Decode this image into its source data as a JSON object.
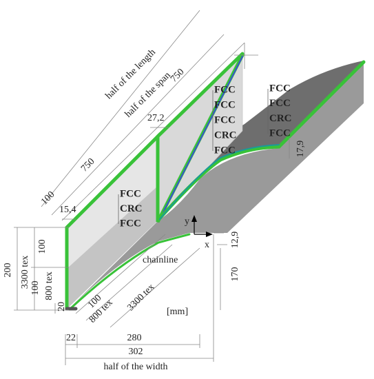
{
  "dimensions": {
    "half_length": "half of the length",
    "half_span": "half of the span",
    "span_top": "750",
    "span_mid": "750",
    "edge_100": "100",
    "d_27_2": "27,2",
    "d_15_4": "15,4",
    "d_17_9": "17,9",
    "d_12_9": "12,9",
    "d_170": "170",
    "d_200": "200",
    "tex_3300_left": "3300 tex",
    "d_100_upper": "100",
    "d_100_lower": "100",
    "tex_800_left": "800 tex",
    "d_20": "20",
    "d_100_bottom": "100",
    "tex_800_bottom": "800 tex",
    "tex_3300_bottom": "3300 tex",
    "d_22": "22",
    "d_280": "280",
    "d_302": "302",
    "half_width": "half of the width"
  },
  "chainline": "chainline",
  "unit": "[mm]",
  "axes": {
    "x": "x",
    "y": "y"
  },
  "layer_groups": [
    [
      {
        "text": "FCC",
        "color": "#1e8a1e"
      },
      {
        "text": "CRC",
        "color": "#111111"
      },
      {
        "text": "FCC",
        "color": "#39c239"
      }
    ],
    [
      {
        "text": "FCC",
        "color": "#8a2be2"
      },
      {
        "text": "FCC",
        "color": "#1a9a9a"
      },
      {
        "text": "FCC",
        "color": "#1e8a1e"
      },
      {
        "text": "CRC",
        "color": "#111111"
      },
      {
        "text": "FCC",
        "color": "#39c239"
      }
    ],
    [
      {
        "text": "FCC",
        "color": "#1a9a9a"
      },
      {
        "text": "FCC",
        "color": "#1e8a1e"
      },
      {
        "text": "CRC",
        "color": "#111111"
      },
      {
        "text": "FCC",
        "color": "#39c239"
      }
    ]
  ]
}
